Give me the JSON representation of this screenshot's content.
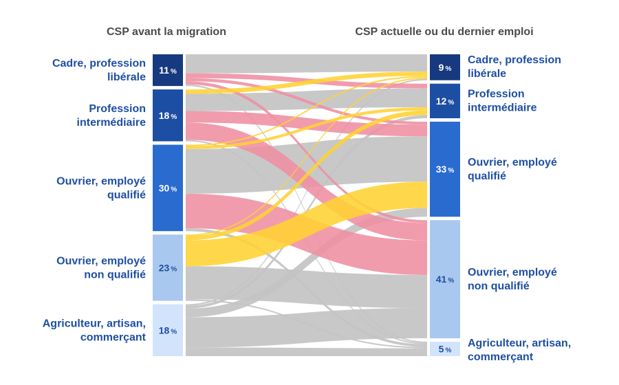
{
  "headers": {
    "left": "CSP avant la migration",
    "right": "CSP actuelle ou du dernier emploi"
  },
  "percent_sign": "%",
  "colors": {
    "cadre": "#17397f",
    "intermediaire": "#1c4ea3",
    "qualifie": "#2a6bd0",
    "non_qualifie": "#a9c8ef",
    "agriculteur": "#d2e4fb",
    "text_dark_bar": "#ffffff",
    "text_light_bar": "#1f4fa3",
    "flow_gray": "#c3c3c3",
    "flow_pink": "#ee8ea2",
    "flow_yellow": "#ffd232"
  },
  "chart_data": {
    "type": "sankey",
    "title": "",
    "left_nodes": [
      {
        "id": "cadre",
        "label_lines": [
          "Cadre, profession",
          "libérale"
        ],
        "value": 11
      },
      {
        "id": "intermediaire",
        "label_lines": [
          "Profession",
          "intermédiaire"
        ],
        "value": 18
      },
      {
        "id": "qualifie",
        "label_lines": [
          "Ouvrier, employé",
          "qualifié"
        ],
        "value": 30
      },
      {
        "id": "non_qualifie",
        "label_lines": [
          "Ouvrier, employé",
          "non qualifié"
        ],
        "value": 23
      },
      {
        "id": "agriculteur",
        "label_lines": [
          "Agriculteur, artisan,",
          "commerçant"
        ],
        "value": 18
      }
    ],
    "right_nodes": [
      {
        "id": "cadre",
        "label_lines": [
          "Cadre, profession",
          "libérale"
        ],
        "value": 9
      },
      {
        "id": "intermediaire",
        "label_lines": [
          "Profession",
          "intermédiaire"
        ],
        "value": 12
      },
      {
        "id": "qualifie",
        "label_lines": [
          "Ouvrier, employé",
          "qualifié"
        ],
        "value": 33
      },
      {
        "id": "non_qualifie",
        "label_lines": [
          "Ouvrier, employé",
          "non qualifié"
        ],
        "value": 41
      },
      {
        "id": "agriculteur",
        "label_lines": [
          "Agriculteur, artisan,",
          "commerçant"
        ],
        "value": 5
      }
    ],
    "flows": [
      {
        "from": "cadre",
        "to": "cadre",
        "value": 6.0,
        "color": "gray"
      },
      {
        "from": "cadre",
        "to": "intermediaire",
        "value": 1.5,
        "color": "pink"
      },
      {
        "from": "cadre",
        "to": "qualifie",
        "value": 1.0,
        "color": "pink"
      },
      {
        "from": "cadre",
        "to": "non_qualifie",
        "value": 1.0,
        "color": "pink"
      },
      {
        "from": "cadre",
        "to": "agriculteur",
        "value": 0.5,
        "color": "gray"
      },
      {
        "from": "intermediaire",
        "to": "cadre",
        "value": 1.5,
        "color": "yellow"
      },
      {
        "from": "intermediaire",
        "to": "intermediaire",
        "value": 6.0,
        "color": "gray"
      },
      {
        "from": "intermediaire",
        "to": "qualifie",
        "value": 4.0,
        "color": "pink"
      },
      {
        "from": "intermediaire",
        "to": "non_qualifie",
        "value": 6.0,
        "color": "pink"
      },
      {
        "from": "intermediaire",
        "to": "agriculteur",
        "value": 0.5,
        "color": "gray"
      },
      {
        "from": "qualifie",
        "to": "cadre",
        "value": 0.5,
        "color": "yellow"
      },
      {
        "from": "qualifie",
        "to": "intermediaire",
        "value": 1.0,
        "color": "yellow"
      },
      {
        "from": "qualifie",
        "to": "qualifie",
        "value": 15.5,
        "color": "gray"
      },
      {
        "from": "qualifie",
        "to": "non_qualifie",
        "value": 12.0,
        "color": "pink"
      },
      {
        "from": "qualifie",
        "to": "agriculteur",
        "value": 1.0,
        "color": "gray"
      },
      {
        "from": "non_qualifie",
        "to": "cadre",
        "value": 0.5,
        "color": "yellow"
      },
      {
        "from": "non_qualifie",
        "to": "intermediaire",
        "value": 1.5,
        "color": "yellow"
      },
      {
        "from": "non_qualifie",
        "to": "qualifie",
        "value": 9.0,
        "color": "yellow"
      },
      {
        "from": "non_qualifie",
        "to": "non_qualifie",
        "value": 11.5,
        "color": "gray"
      },
      {
        "from": "non_qualifie",
        "to": "agriculteur",
        "value": 0.5,
        "color": "gray"
      },
      {
        "from": "agriculteur",
        "to": "cadre",
        "value": 0.5,
        "color": "gray"
      },
      {
        "from": "agriculteur",
        "to": "intermediaire",
        "value": 1.0,
        "color": "gray"
      },
      {
        "from": "agriculteur",
        "to": "qualifie",
        "value": 3.0,
        "color": "gray"
      },
      {
        "from": "agriculteur",
        "to": "non_qualifie",
        "value": 10.5,
        "color": "gray"
      },
      {
        "from": "agriculteur",
        "to": "agriculteur",
        "value": 3.0,
        "color": "gray"
      }
    ]
  }
}
